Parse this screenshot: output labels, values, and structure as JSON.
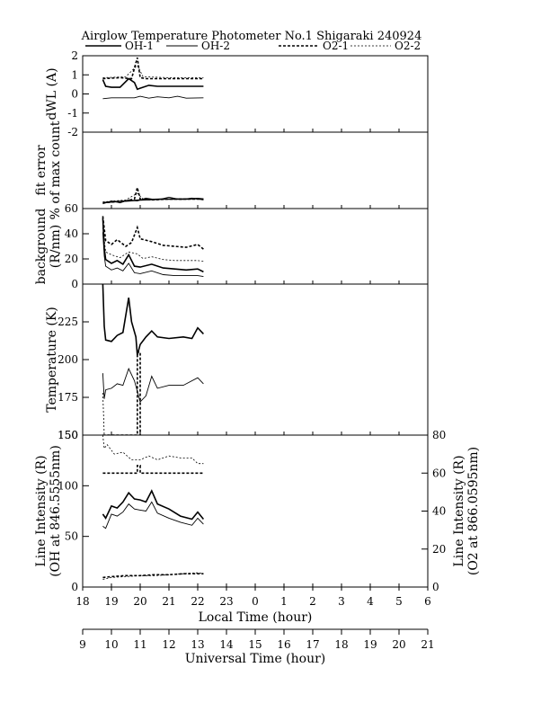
{
  "title": "Airglow Temperature Photometer No.1  Shigaraki  240924",
  "legend": [
    {
      "name": "OH-1",
      "dash": "",
      "width": 1.6
    },
    {
      "name": "OH-2",
      "dash": "",
      "width": 0.9
    },
    {
      "name": "O2-1",
      "dash": "3,2",
      "width": 1.6
    },
    {
      "name": "O2-2",
      "dash": "2,2",
      "width": 0.8
    }
  ],
  "chart_data": [
    {
      "type": "line",
      "name": "dWL",
      "ylabel": [
        "dWL (A)"
      ],
      "ylim": [
        -2,
        2
      ],
      "yticks": [
        "-2",
        "-1",
        "0",
        "1",
        "2"
      ],
      "x_unit": "local time (hour)",
      "series": [
        {
          "name": "OH-1",
          "x": [
            18.7,
            18.8,
            19.0,
            19.3,
            19.6,
            19.8,
            19.9,
            20.0,
            20.3,
            20.6,
            21.0,
            21.5,
            22.0,
            22.2
          ],
          "y": [
            0.75,
            0.4,
            0.35,
            0.35,
            0.8,
            0.6,
            0.25,
            0.3,
            0.45,
            0.4,
            0.4,
            0.4,
            0.4,
            0.4
          ]
        },
        {
          "name": "OH-2",
          "x": [
            18.7,
            19.0,
            19.8,
            20.0,
            20.3,
            20.6,
            21.0,
            21.3,
            21.6,
            22.2
          ],
          "y": [
            -0.25,
            -0.2,
            -0.2,
            -0.12,
            -0.22,
            -0.15,
            -0.2,
            -0.12,
            -0.22,
            -0.2
          ]
        },
        {
          "name": "O2-1",
          "x": [
            18.7,
            19.3,
            19.7,
            19.9,
            20.0,
            20.2,
            21.0,
            22.2
          ],
          "y": [
            0.8,
            0.85,
            0.8,
            1.9,
            0.85,
            0.8,
            0.8,
            0.8
          ]
        },
        {
          "name": "O2-2",
          "x": [
            18.7,
            19.5,
            19.9,
            20.1,
            21.0,
            22.2
          ],
          "y": [
            0.85,
            0.9,
            1.5,
            0.9,
            0.85,
            0.85
          ]
        }
      ]
    },
    {
      "type": "line",
      "name": "fit-error",
      "ylabel": [
        "fit error",
        "% of max count"
      ],
      "ylim": [
        0,
        8
      ],
      "yticks": [],
      "x_unit": "local time (hour)",
      "series": [
        {
          "name": "OH-1",
          "x": [
            18.7,
            19.0,
            19.3,
            19.6,
            19.8,
            20.0,
            20.4,
            20.8,
            21.2,
            21.6,
            22.0,
            22.2
          ],
          "y": [
            0.6,
            0.7,
            0.75,
            0.8,
            0.85,
            0.9,
            0.95,
            1.0,
            1.0,
            1.0,
            1.05,
            1.0
          ]
        },
        {
          "name": "OH-2",
          "x": [
            18.7,
            19.0,
            19.3,
            19.6,
            19.9,
            20.2,
            20.6,
            21.0,
            21.4,
            21.8,
            22.2
          ],
          "y": [
            0.5,
            0.8,
            0.6,
            0.9,
            0.8,
            1.1,
            0.9,
            1.2,
            0.95,
            1.1,
            0.9
          ]
        },
        {
          "name": "O2-1",
          "x": [
            18.7,
            19.5,
            19.8,
            19.9,
            20.0,
            20.4,
            21.0,
            22.2
          ],
          "y": [
            0.6,
            0.8,
            1.0,
            2.2,
            1.0,
            0.9,
            1.0,
            1.0
          ]
        },
        {
          "name": "O2-2",
          "x": [
            18.7,
            19.5,
            19.9,
            20.1,
            21.0,
            22.2
          ],
          "y": [
            0.7,
            0.9,
            1.6,
            1.0,
            1.0,
            1.0
          ]
        }
      ]
    },
    {
      "type": "line",
      "name": "background",
      "ylabel": [
        "background",
        "(R/nm)"
      ],
      "ylim": [
        0,
        80
      ],
      "yticks": [
        "0",
        "20",
        "40",
        "60"
      ],
      "x_unit": "local time (hour)",
      "series": [
        {
          "name": "OH-1",
          "x": [
            18.7,
            18.75,
            18.8,
            19.0,
            19.2,
            19.4,
            19.6,
            19.8,
            20.0,
            20.4,
            20.8,
            21.2,
            21.6,
            22.0,
            22.2
          ],
          "y": [
            70,
            38,
            26,
            22,
            25,
            21,
            31,
            19,
            18,
            21,
            17,
            16,
            15,
            16,
            13
          ]
        },
        {
          "name": "OH-2",
          "x": [
            18.7,
            18.75,
            18.8,
            19.0,
            19.2,
            19.4,
            19.6,
            19.8,
            20.0,
            20.4,
            20.8,
            21.2,
            21.6,
            22.0,
            22.2
          ],
          "y": [
            55,
            30,
            19,
            15,
            17,
            14,
            22,
            12,
            11,
            14,
            10,
            9,
            9,
            9,
            8
          ]
        },
        {
          "name": "O2-1",
          "x": [
            18.7,
            18.8,
            19.0,
            19.2,
            19.5,
            19.7,
            19.9,
            20.0,
            20.4,
            20.8,
            21.2,
            21.6,
            22.0,
            22.2
          ],
          "y": [
            72,
            46,
            42,
            47,
            40,
            44,
            60,
            48,
            45,
            41,
            40,
            39,
            42,
            37
          ]
        },
        {
          "name": "O2-2",
          "x": [
            18.7,
            18.8,
            19.0,
            19.3,
            19.6,
            19.9,
            20.1,
            20.4,
            20.8,
            21.2,
            21.6,
            22.0,
            22.2
          ],
          "y": [
            60,
            34,
            31,
            28,
            34,
            32,
            27,
            29,
            26,
            25,
            25,
            25,
            24
          ]
        }
      ]
    },
    {
      "type": "line",
      "name": "temperature",
      "ylabel": [
        "Temperature (K)"
      ],
      "ylim": [
        150,
        250
      ],
      "yticks": [
        "150",
        "175",
        "200",
        "225"
      ],
      "x_unit": "local time (hour)",
      "series": [
        {
          "name": "OH-1",
          "x": [
            18.7,
            18.75,
            18.8,
            19.0,
            19.2,
            19.4,
            19.6,
            19.7,
            19.85,
            19.9,
            20.0,
            20.2,
            20.4,
            20.6,
            21.0,
            21.5,
            21.8,
            22.0,
            22.2
          ],
          "y": [
            250,
            222,
            213,
            212,
            216,
            218,
            241,
            225,
            215,
            203,
            210,
            215,
            219,
            215,
            214,
            215,
            214,
            221,
            217
          ]
        },
        {
          "name": "OH-2",
          "x": [
            18.7,
            18.75,
            18.8,
            19.0,
            19.2,
            19.4,
            19.6,
            19.8,
            20.0,
            20.2,
            20.4,
            20.6,
            21.0,
            21.5,
            22.0,
            22.2
          ],
          "y": [
            191,
            174,
            180,
            181,
            184,
            183,
            194,
            186,
            172,
            176,
            189,
            181,
            183,
            183,
            188,
            184
          ]
        },
        {
          "name": "O2-1",
          "x": [
            18.7,
            18.75,
            18.8,
            19.85,
            19.9,
            19.9,
            20.0,
            20.0
          ],
          "y": [
            150,
            150,
            150,
            150,
            150,
            205,
            205,
            150
          ]
        },
        {
          "name": "O2-2",
          "x": [
            18.7,
            18.75,
            18.85,
            19.85,
            19.9,
            19.95
          ],
          "y": [
            178,
            150,
            150,
            150,
            150,
            150
          ]
        }
      ]
    },
    {
      "type": "line",
      "name": "line-intensity",
      "ylabel": [
        "Line Intensity (R)",
        "(OH at 846.5555nm)"
      ],
      "ylim": [
        0,
        150
      ],
      "yticks": [
        "0",
        "50",
        "100",
        "150"
      ],
      "y2label": [
        "Line Intensity (R)",
        "(O2 at 866.0595nm)"
      ],
      "y2lim": [
        0,
        80
      ],
      "y2ticks": [
        "0",
        "20",
        "40",
        "60",
        "80"
      ],
      "x_unit": "local time (hour)",
      "series": [
        {
          "name": "OH-1",
          "axis": "left",
          "x": [
            18.7,
            18.8,
            19.0,
            19.2,
            19.4,
            19.6,
            19.8,
            20.0,
            20.2,
            20.4,
            20.6,
            21.0,
            21.4,
            21.8,
            22.0,
            22.2
          ],
          "y": [
            72,
            68,
            80,
            78,
            84,
            93,
            87,
            86,
            84,
            95,
            82,
            77,
            70,
            67,
            74,
            67
          ]
        },
        {
          "name": "OH-2",
          "axis": "left",
          "x": [
            18.7,
            18.8,
            19.0,
            19.2,
            19.4,
            19.6,
            19.8,
            20.0,
            20.2,
            20.4,
            20.6,
            21.0,
            21.4,
            21.8,
            22.0,
            22.2
          ],
          "y": [
            60,
            58,
            72,
            70,
            74,
            82,
            77,
            76,
            75,
            84,
            73,
            68,
            64,
            61,
            68,
            62
          ]
        },
        {
          "name": "O2-1",
          "axis": "right",
          "x": [
            18.7,
            19.0,
            19.5,
            20.0,
            20.5,
            21.0,
            21.5,
            22.2
          ],
          "y": [
            5,
            5.5,
            6,
            6,
            6.5,
            6.5,
            7,
            7
          ]
        },
        {
          "name": "O2-2",
          "axis": "right",
          "x": [
            18.7,
            19.0,
            19.5,
            20.0,
            20.5,
            21.0,
            21.5,
            22.0,
            22.2
          ],
          "y": [
            4,
            5,
            5.5,
            6,
            6,
            6.5,
            7,
            7.5,
            7
          ]
        }
      ],
      "overlay_series": [
        {
          "name": "O2-1",
          "axis": "right",
          "x": [
            18.7,
            19.85,
            19.9,
            19.9,
            20.0,
            20.0,
            22.2
          ],
          "y": [
            60,
            60,
            60,
            64,
            64,
            60,
            60
          ]
        },
        {
          "name": "O2-2",
          "axis": "right",
          "x": [
            18.7,
            18.75,
            18.85,
            19.1,
            19.4,
            19.7,
            20.0,
            20.3,
            20.6,
            21.0,
            21.4,
            21.8,
            22.0,
            22.2
          ],
          "y": [
            80,
            73,
            75,
            70,
            71,
            67,
            67,
            69,
            67,
            69,
            68,
            68,
            65,
            65
          ]
        }
      ]
    }
  ],
  "x_axes": {
    "local": {
      "title": "Local Time (hour)",
      "ticks": [
        "18",
        "19",
        "20",
        "21",
        "22",
        "23",
        "0",
        "1",
        "2",
        "3",
        "4",
        "5",
        "6"
      ]
    },
    "universal": {
      "title": "Universal Time (hour)",
      "ticks": [
        "9",
        "10",
        "11",
        "12",
        "13",
        "14",
        "15",
        "16",
        "17",
        "18",
        "19",
        "20",
        "21"
      ]
    }
  }
}
